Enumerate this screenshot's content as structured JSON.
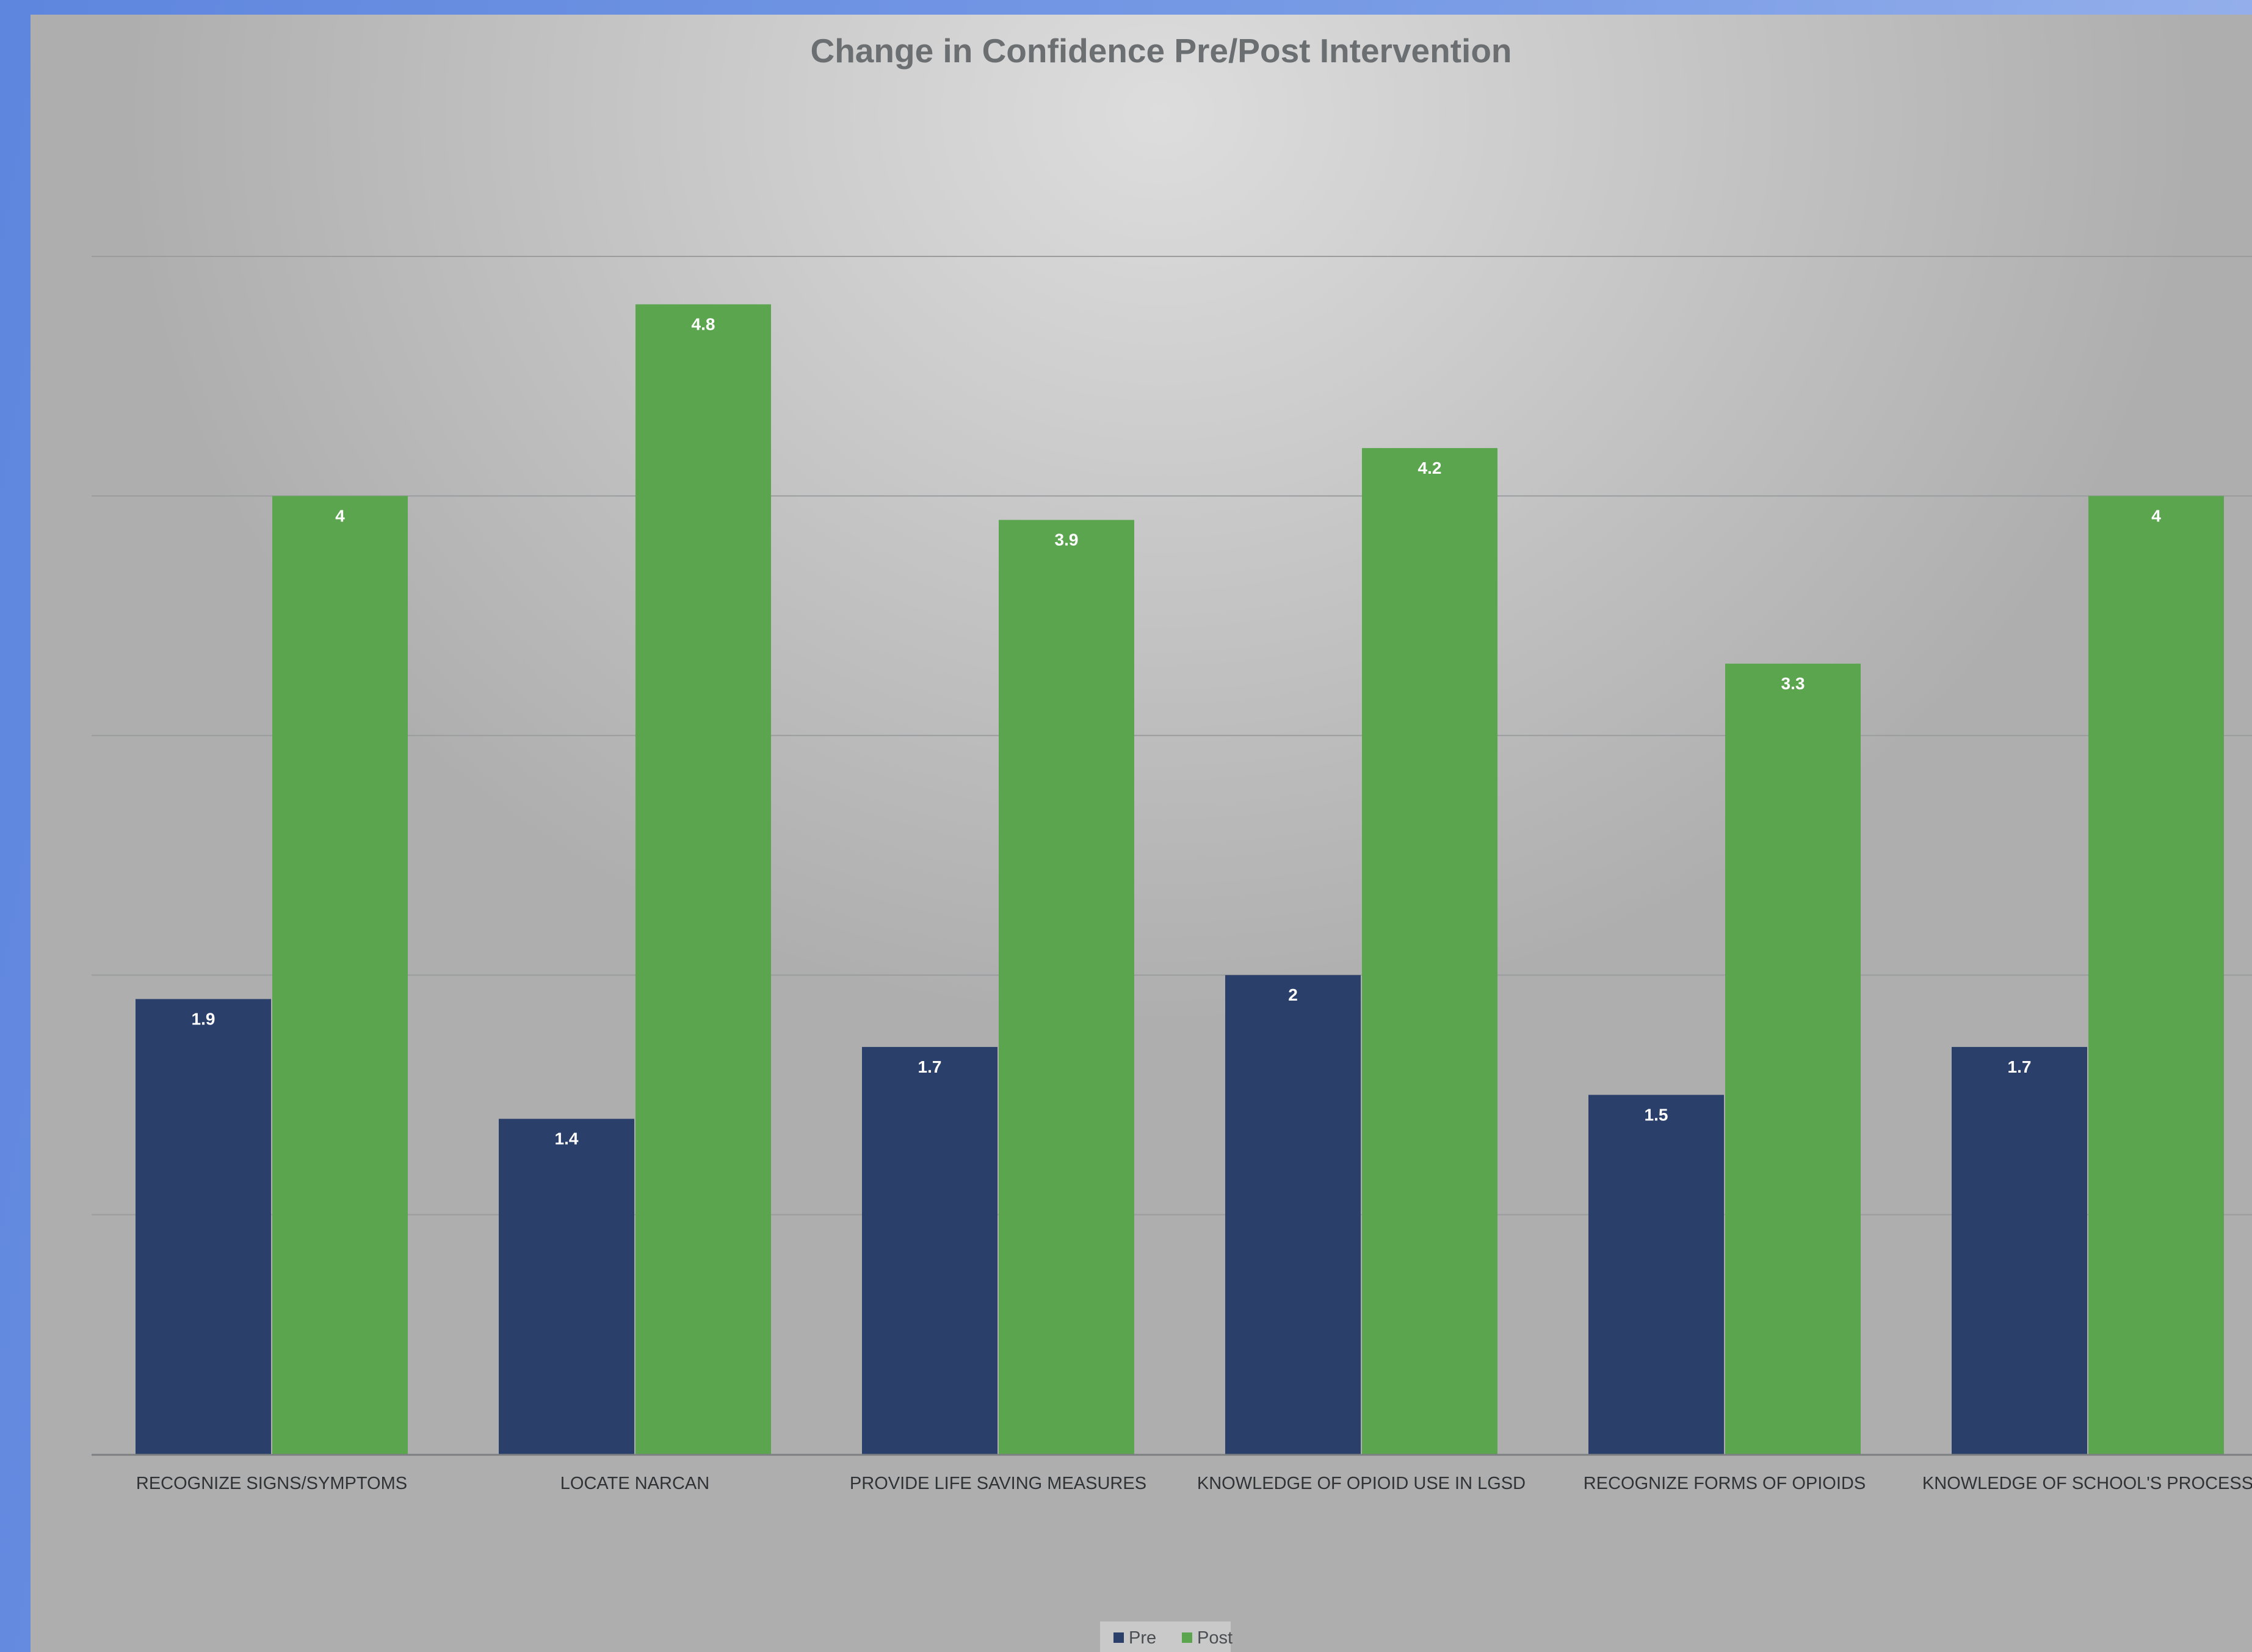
{
  "chart_data": {
    "type": "bar",
    "title": "Change in Confidence Pre/Post Intervention",
    "xlabel": "",
    "ylabel": "",
    "ylim": [
      0,
      5
    ],
    "grid": true,
    "legend_position": "bottom",
    "categories": [
      "RECOGNIZE SIGNS/SYMPTOMS",
      "LOCATE NARCAN",
      "PROVIDE LIFE SAVING MEASURES",
      "KNOWLEDGE OF OPIOID USE IN LGSD",
      "RECOGNIZE FORMS OF OPIOIDS",
      "KNOWLEDGE OF SCHOOL'S PROCESS"
    ],
    "series": [
      {
        "name": "Pre",
        "color": "#2b3f6b",
        "values": [
          1.9,
          1.4,
          1.7,
          2,
          1.5,
          1.7
        ]
      },
      {
        "name": "Post",
        "color": "#5aa54d",
        "values": [
          4,
          4.8,
          3.9,
          4.2,
          3.3,
          4
        ]
      }
    ]
  }
}
